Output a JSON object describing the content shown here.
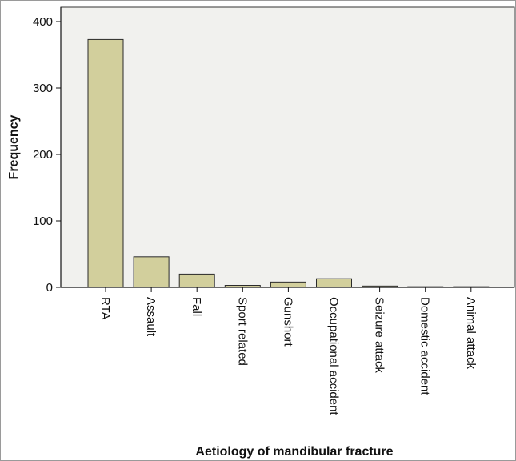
{
  "chart_data": {
    "type": "bar",
    "title": "",
    "xlabel": "Aetiology of mandibular fracture",
    "ylabel": "Frequency",
    "categories": [
      "RTA",
      "Assault",
      "Fall",
      "Sport related",
      "Gunshort",
      "Occupational accident",
      "Seizure attack",
      "Domestic accident",
      "Animal attack"
    ],
    "values": [
      373,
      46,
      20,
      3,
      8,
      13,
      2,
      1,
      1
    ],
    "ylim": [
      0,
      400
    ],
    "yticks": [
      "0",
      "100",
      "200",
      "300",
      "400"
    ],
    "grid": false,
    "colors": {
      "bar_fill": "#d2cf9c",
      "bar_stroke": "#2a2a2a",
      "plot_background": "#f1f1ee"
    }
  }
}
